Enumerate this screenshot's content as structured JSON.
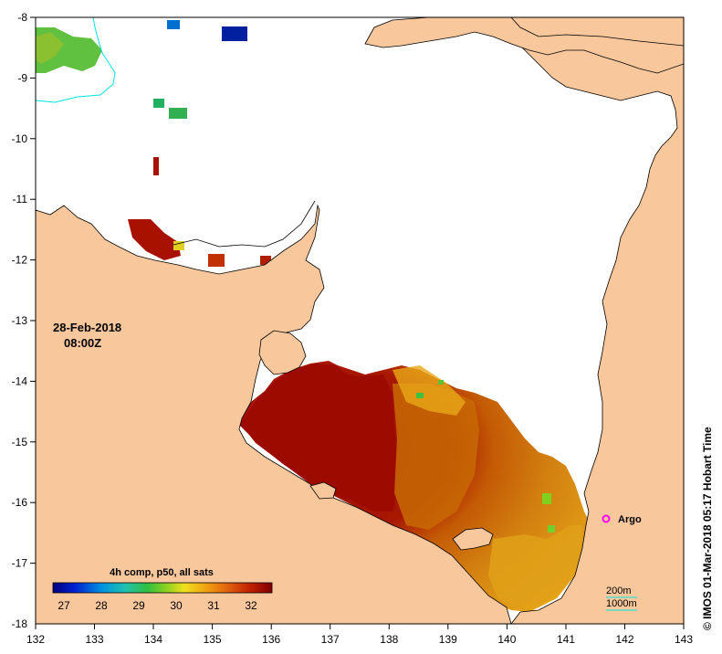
{
  "map": {
    "date_line1": "28-Feb-2018",
    "date_line2": "08:00Z",
    "credit": "© IMOS 01-Mar-2018 05:17 Hobart Time",
    "argo_label": "Argo",
    "contour_200": "200m",
    "contour_1000": "1000m",
    "lon_ticks": [
      "132",
      "133",
      "134",
      "135",
      "136",
      "137",
      "138",
      "139",
      "140",
      "141",
      "142",
      "143"
    ],
    "lat_ticks": [
      "-8",
      "-9",
      "-10",
      "-11",
      "-12",
      "-13",
      "-14",
      "-15",
      "-16",
      "-17",
      "-18"
    ],
    "legend": {
      "title": "4h comp, p50, all sats",
      "ticks": [
        "27",
        "28",
        "29",
        "30",
        "31",
        "32"
      ]
    },
    "colors": {
      "land": "#f9c79c",
      "argo": "#ff00ff",
      "contour_1000": "#00e5e5",
      "contour_200": "#00e5e5",
      "sst_hot": "#9c0a00",
      "sst_warm": "#c86a00",
      "sst_mid": "#e8a010"
    }
  }
}
